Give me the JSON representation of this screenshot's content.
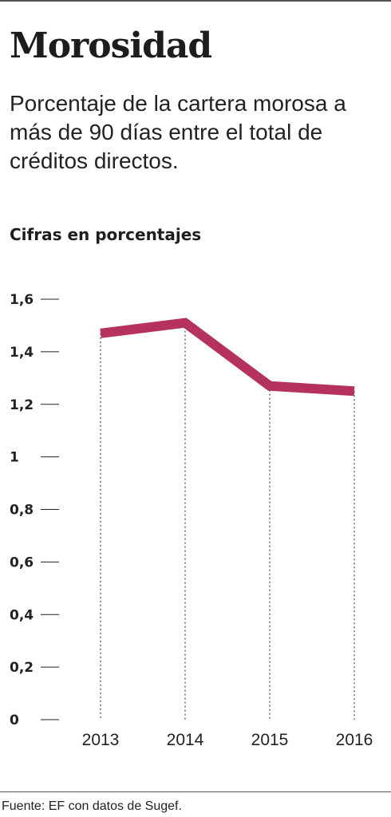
{
  "header": {
    "title": "Morosidad",
    "subtitle": "Porcentaje de la cartera morosa a más de 90 días entre el total de créditos directos.",
    "units": "Cifras en porcentajes"
  },
  "footer": {
    "source": "Fuente: EF con datos de Sugef."
  },
  "colors": {
    "line": "#b5325f",
    "text": "#222222",
    "grid": "#222222"
  },
  "chart_data": {
    "type": "line",
    "x": [
      "2013",
      "2014",
      "2015",
      "2016"
    ],
    "series": [
      {
        "values": [
          1.47,
          1.51,
          1.27,
          1.25
        ]
      }
    ],
    "ylim": [
      0,
      1.6
    ],
    "yticks": [
      0,
      0.2,
      0.4,
      0.6,
      0.8,
      1,
      1.2,
      1.4,
      1.6
    ],
    "ytick_labels": [
      "0",
      "0,2",
      "0,4",
      "0,6",
      "0,8",
      "1",
      "1,2",
      "1,4",
      "1,6"
    ],
    "xlabel": "",
    "ylabel": "",
    "grid": false,
    "drop_lines": true
  }
}
